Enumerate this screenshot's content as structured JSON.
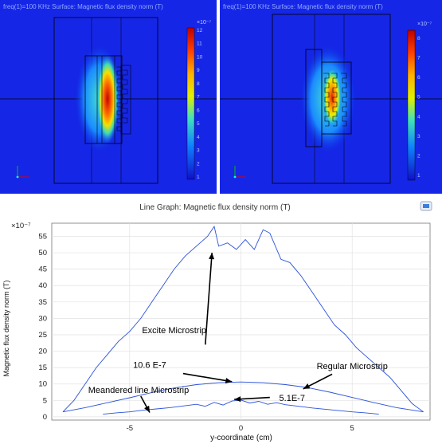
{
  "panels": [
    {
      "caption": "freq(1)=100 KHz  Surface: Magnetic flux density norm (T)",
      "colorbar_max": "×10⁻⁷",
      "colorbar_ticks": [
        "12",
        "11",
        "10",
        "9",
        "8",
        "7",
        "6",
        "5",
        "4",
        "3",
        "2",
        "1"
      ],
      "variant": "regular"
    },
    {
      "caption": "freq(1)=100 KHz  Surface: Magnetic flux density norm (T)",
      "colorbar_max": "×10⁻⁷",
      "colorbar_ticks": [
        "8",
        "7",
        "6",
        "5",
        "4",
        "3",
        "2",
        "1"
      ],
      "variant": "meander"
    }
  ],
  "graph": {
    "header": "Line Graph: Magnetic flux density norm (T)",
    "badge_icon": "export-icon"
  },
  "chart_data": {
    "type": "line",
    "xlabel": "y-coordinate (cm)",
    "ylabel": "Magnetic flux density norm (T)",
    "y_multiplier": "×10⁻⁷",
    "xlim": [
      -8.5,
      8.5
    ],
    "ylim": [
      -1,
      59
    ],
    "x_ticks": [
      -5,
      0,
      5
    ],
    "y_ticks": [
      0,
      5,
      10,
      15,
      20,
      25,
      30,
      35,
      40,
      45,
      50,
      55
    ],
    "grid": true,
    "series": [
      {
        "name": "Excite Microstrip",
        "x": [
          -8,
          -7.5,
          -7,
          -6.5,
          -6,
          -5.5,
          -5,
          -4.5,
          -4,
          -3.5,
          -3,
          -2.5,
          -2,
          -1.5,
          -1.2,
          -1,
          -0.6,
          -0.2,
          0.2,
          0.6,
          1,
          1.3,
          1.8,
          2.2,
          2.7,
          3.2,
          3.7,
          4.2,
          4.7,
          5.2,
          5.7,
          6.2,
          6.7,
          7.2,
          7.7,
          8.2
        ],
        "y": [
          1.5,
          5,
          10,
          15,
          19,
          23,
          26,
          30,
          35,
          40,
          45,
          49,
          52,
          55,
          58,
          52,
          53,
          51,
          54,
          51,
          57,
          56,
          48,
          47,
          43,
          38,
          33,
          28,
          25,
          21,
          18,
          15,
          12,
          8,
          4,
          1.5
        ]
      },
      {
        "name": "Regular Microstrip",
        "x": [
          -8,
          -7,
          -6,
          -5,
          -4,
          -3,
          -2,
          -1,
          0,
          1,
          2,
          3,
          4,
          5,
          6,
          7,
          8.2
        ],
        "y": [
          1.5,
          2.8,
          4.3,
          5.8,
          7.4,
          8.8,
          9.8,
          10.4,
          10.6,
          10.4,
          9.8,
          8.9,
          7.5,
          5.9,
          4.3,
          2.8,
          1.5
        ]
      },
      {
        "name": "Meandered line Microstrip",
        "x": [
          -6.2,
          -5.6,
          -5,
          -4.4,
          -3.8,
          -3.2,
          -2.6,
          -2,
          -1.6,
          -1.2,
          -0.8,
          -0.4,
          0,
          0.4,
          0.8,
          1.2,
          1.6,
          2,
          2.6,
          3.2,
          3.8,
          4.4,
          5,
          5.6,
          6.2
        ],
        "y": [
          0.8,
          1.2,
          1.5,
          2,
          2.4,
          2.8,
          3.3,
          3.8,
          3.2,
          4.4,
          3.6,
          4.8,
          5.1,
          4.2,
          4.7,
          3.8,
          4.3,
          3.7,
          3.2,
          2.7,
          2.3,
          1.9,
          1.5,
          1.2,
          0.8
        ]
      }
    ],
    "annotations": [
      {
        "text": "Excite Microstrip"
      },
      {
        "text": "Regular Microstrip"
      },
      {
        "text": "Meandered line Microstrip"
      },
      {
        "text": "10.6 E-7"
      },
      {
        "text": "5.1E-7"
      }
    ]
  }
}
